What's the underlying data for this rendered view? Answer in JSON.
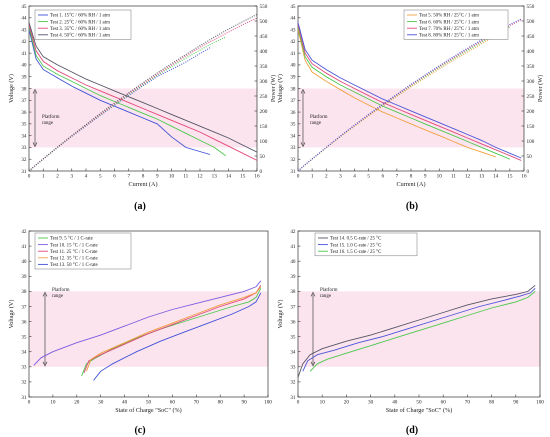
{
  "figure": {
    "captions": [
      "(a)",
      "(b)",
      "(c)",
      "(d)"
    ],
    "platform_label_lines": [
      "Platform",
      "range"
    ],
    "platform_color": "#fce4ef"
  },
  "chart_data": [
    {
      "type": "line",
      "xlabel": "Current (A)",
      "ylabel": "Voltage (V)",
      "y2label": "Power (W)",
      "xlim": [
        0,
        16
      ],
      "ylim": [
        31,
        45
      ],
      "y2lim": [
        0,
        550
      ],
      "xticks": [
        0,
        1,
        2,
        3,
        4,
        5,
        6,
        7,
        8,
        9,
        10,
        11,
        12,
        13,
        14,
        15,
        16
      ],
      "yticks": [
        31,
        32,
        33,
        34,
        35,
        36,
        37,
        38,
        39,
        40,
        41,
        42,
        43,
        44,
        45
      ],
      "y2ticks": [
        0,
        50,
        100,
        150,
        200,
        250,
        300,
        350,
        400,
        450,
        500,
        550
      ],
      "platform_range": [
        33,
        38
      ],
      "legend_position": "top-left",
      "series": [
        {
          "name": "Test 1. 15°C / 60% RH / 1 atm",
          "color": "#3f51d8",
          "x": [
            0,
            0.5,
            1,
            2,
            3,
            4,
            5,
            6,
            7,
            8,
            9,
            10,
            11,
            12.7
          ],
          "voltage": [
            43.0,
            40.5,
            39.6,
            38.9,
            38.2,
            37.6,
            37.0,
            36.5,
            36.0,
            35.5,
            35.0,
            33.9,
            33.0,
            32.4
          ],
          "power": [
            0,
            20,
            40,
            78,
            115,
            150,
            185,
            219,
            252,
            284,
            315,
            339,
            363,
            411
          ]
        },
        {
          "name": "Test 2. 25°C / 60% RH / 1 atm",
          "color": "#4cc84c",
          "x": [
            0,
            0.5,
            1,
            2,
            3,
            4,
            5,
            6,
            7,
            8,
            9,
            10,
            11,
            12,
            13,
            13.8
          ],
          "voltage": [
            43.2,
            40.8,
            39.9,
            39.2,
            38.6,
            38.0,
            37.4,
            36.9,
            36.4,
            35.9,
            35.4,
            34.8,
            34.2,
            33.6,
            33.0,
            32.3
          ],
          "power": [
            0,
            20,
            40,
            78,
            116,
            152,
            187,
            221,
            255,
            287,
            319,
            348,
            376,
            403,
            429,
            446
          ]
        },
        {
          "name": "Test 3. 35°C / 60% RH / 1 atm",
          "color": "#e2487a",
          "x": [
            0,
            0.5,
            1,
            2,
            3,
            4,
            5,
            6,
            7,
            8,
            9,
            10,
            11,
            12,
            13,
            14,
            15,
            16
          ],
          "voltage": [
            43.4,
            41.2,
            40.3,
            39.5,
            38.9,
            38.3,
            37.8,
            37.3,
            36.8,
            36.3,
            35.8,
            35.3,
            34.8,
            34.3,
            33.7,
            33.1,
            32.5,
            31.9
          ],
          "power": [
            0,
            21,
            40,
            79,
            117,
            153,
            189,
            224,
            258,
            290,
            322,
            353,
            383,
            412,
            438,
            463,
            488,
            510
          ]
        },
        {
          "name": "Test 4. 50°C / 60% RH / 1 atm",
          "color": "#555566",
          "x": [
            0,
            0.5,
            1,
            2,
            3,
            4,
            5,
            6,
            7,
            8,
            9,
            10,
            11,
            12,
            13,
            14,
            15,
            16
          ],
          "voltage": [
            43.6,
            41.6,
            40.7,
            40.0,
            39.4,
            38.8,
            38.3,
            37.8,
            37.3,
            36.8,
            36.3,
            35.8,
            35.3,
            34.8,
            34.3,
            33.8,
            33.2,
            32.6
          ],
          "power": [
            0,
            21,
            41,
            80,
            118,
            155,
            192,
            227,
            261,
            294,
            327,
            358,
            388,
            418,
            446,
            473,
            498,
            522
          ]
        }
      ]
    },
    {
      "type": "line",
      "xlabel": "Current (A)",
      "ylabel": "Voltage (V)",
      "y2label": "Power (W)",
      "xlim": [
        0,
        16
      ],
      "ylim": [
        31,
        45
      ],
      "y2lim": [
        0,
        550
      ],
      "xticks": [
        0,
        1,
        2,
        3,
        4,
        5,
        6,
        7,
        8,
        9,
        10,
        11,
        12,
        13,
        14,
        15,
        16
      ],
      "yticks": [
        31,
        32,
        33,
        34,
        35,
        36,
        37,
        38,
        39,
        40,
        41,
        42,
        43,
        44,
        45
      ],
      "y2ticks": [
        0,
        50,
        100,
        150,
        200,
        250,
        300,
        350,
        400,
        450,
        500,
        550
      ],
      "platform_range": [
        33,
        38
      ],
      "legend_position": "top-right",
      "series": [
        {
          "name": "Test 5. 50% RH / 25°C / 1 atm",
          "color": "#f0a040",
          "x": [
            0,
            0.5,
            1,
            2,
            3,
            4,
            5,
            6,
            7,
            8,
            9,
            10,
            11,
            12,
            13,
            14
          ],
          "voltage": [
            43.0,
            40.4,
            39.4,
            38.6,
            37.9,
            37.2,
            36.6,
            36.0,
            35.5,
            35.0,
            34.5,
            34.0,
            33.5,
            33.0,
            32.6,
            32.2
          ],
          "power": [
            0,
            20,
            39,
            77,
            114,
            149,
            183,
            216,
            249,
            280,
            311,
            340,
            369,
            396,
            424,
            451
          ]
        },
        {
          "name": "Test 6. 60% RH / 25°C / 1 atm",
          "color": "#4cc84c",
          "x": [
            0,
            0.5,
            1,
            2,
            3,
            4,
            5,
            6,
            7,
            8,
            9,
            10,
            11,
            12,
            13,
            14,
            15
          ],
          "voltage": [
            43.2,
            40.7,
            39.8,
            39.0,
            38.3,
            37.7,
            37.1,
            36.5,
            36.0,
            35.5,
            35.0,
            34.5,
            34.0,
            33.5,
            33.0,
            32.5,
            32.0
          ],
          "power": [
            0,
            20,
            40,
            78,
            115,
            151,
            186,
            219,
            252,
            284,
            315,
            345,
            374,
            402,
            429,
            455,
            480
          ]
        },
        {
          "name": "Test 7. 70% RH / 25°C / 1 atm",
          "color": "#e2487a",
          "x": [
            0,
            0.5,
            1,
            2,
            3,
            4,
            5,
            6,
            7,
            8,
            9,
            10,
            11,
            12,
            13,
            14,
            15,
            15.8
          ],
          "voltage": [
            43.4,
            41.0,
            40.1,
            39.3,
            38.6,
            38.0,
            37.4,
            36.8,
            36.3,
            35.8,
            35.3,
            34.8,
            34.3,
            33.8,
            33.3,
            32.8,
            32.3,
            31.9
          ],
          "power": [
            0,
            21,
            40,
            79,
            116,
            152,
            187,
            221,
            254,
            286,
            318,
            348,
            377,
            406,
            433,
            459,
            485,
            504
          ]
        },
        {
          "name": "Test 8. 80% RH / 25°C / 1 atm",
          "color": "#4a55d8",
          "x": [
            0,
            0.5,
            1,
            2,
            3,
            4,
            5,
            6,
            7,
            8,
            9,
            10,
            11,
            12,
            13,
            14,
            15,
            15.8
          ],
          "voltage": [
            43.6,
            41.3,
            40.4,
            39.6,
            38.9,
            38.3,
            37.7,
            37.1,
            36.6,
            36.1,
            35.6,
            35.1,
            34.6,
            34.1,
            33.6,
            33.0,
            32.5,
            32.1
          ],
          "power": [
            0,
            21,
            40,
            79,
            117,
            153,
            189,
            223,
            256,
            289,
            320,
            351,
            381,
            409,
            437,
            462,
            488,
            507
          ]
        }
      ]
    },
    {
      "type": "line",
      "xlabel": "State of Charge \"SoC\" (%)",
      "ylabel": "Voltage (V)",
      "xlim": [
        0,
        100
      ],
      "ylim": [
        31,
        42
      ],
      "xticks": [
        0,
        10,
        20,
        30,
        40,
        50,
        60,
        70,
        80,
        90,
        100
      ],
      "yticks": [
        31,
        32,
        33,
        34,
        35,
        36,
        37,
        38,
        39,
        40,
        41,
        42
      ],
      "platform_range": [
        33,
        38
      ],
      "legend_position": "top-left",
      "series": [
        {
          "name": "Test 9.  5 °C / 1 C-rate",
          "color": "#4cc84c",
          "x": [
            22,
            24,
            28,
            35,
            45,
            55,
            65,
            75,
            85,
            92,
            95,
            97
          ],
          "y": [
            32.4,
            33.2,
            33.6,
            34.2,
            34.9,
            35.5,
            36.0,
            36.5,
            37.0,
            37.3,
            37.6,
            38.2
          ]
        },
        {
          "name": "Test 10. 15 °C / 1 C-rate",
          "color": "#7a5be0",
          "x": [
            2,
            5,
            10,
            20,
            30,
            40,
            50,
            60,
            70,
            80,
            90,
            95,
            97
          ],
          "y": [
            33.1,
            33.6,
            34.0,
            34.6,
            35.1,
            35.7,
            36.3,
            36.8,
            37.2,
            37.6,
            38.0,
            38.3,
            38.7
          ]
        },
        {
          "name": "Test 11. 25 °C / 1 C-rate",
          "color": "#e2487a",
          "x": [
            23,
            25,
            30,
            40,
            50,
            60,
            70,
            80,
            90,
            95,
            97
          ],
          "y": [
            32.6,
            33.4,
            33.8,
            34.5,
            35.2,
            35.8,
            36.4,
            37.0,
            37.5,
            37.9,
            38.4
          ]
        },
        {
          "name": "Test 12. 35 °C / 1 C-rate",
          "color": "#f0a040",
          "x": [
            24,
            26,
            30,
            40,
            50,
            60,
            70,
            80,
            90,
            95,
            97
          ],
          "y": [
            32.7,
            33.5,
            33.9,
            34.6,
            35.3,
            35.9,
            36.5,
            37.1,
            37.6,
            37.9,
            38.3
          ]
        },
        {
          "name": "Test 13. 50 °C / 1 C-rate",
          "color": "#3f51d8",
          "x": [
            27,
            30,
            35,
            45,
            55,
            65,
            75,
            85,
            92,
            95,
            97
          ],
          "y": [
            32.1,
            32.7,
            33.2,
            34.0,
            34.7,
            35.3,
            35.9,
            36.5,
            37.0,
            37.3,
            37.9
          ]
        }
      ]
    },
    {
      "type": "line",
      "xlabel": "State of Charge \"SoC\" (%)",
      "ylabel": "Voltage (V)",
      "xlim": [
        0,
        100
      ],
      "ylim": [
        31,
        42
      ],
      "xticks": [
        0,
        10,
        20,
        30,
        40,
        50,
        60,
        70,
        80,
        90,
        100
      ],
      "yticks": [
        31,
        32,
        33,
        34,
        35,
        36,
        37,
        38,
        39,
        40,
        41,
        42
      ],
      "platform_range": [
        33,
        38
      ],
      "legend_position": "top-left",
      "series": [
        {
          "name": "Test 14. 0.5 C-rate / 25 °C",
          "color": "#555566",
          "x": [
            0,
            2,
            5,
            10,
            20,
            30,
            40,
            50,
            60,
            70,
            80,
            90,
            95,
            98
          ],
          "y": [
            32.3,
            33.2,
            33.8,
            34.2,
            34.7,
            35.1,
            35.6,
            36.1,
            36.6,
            37.1,
            37.5,
            37.8,
            38.0,
            38.4
          ]
        },
        {
          "name": "Test 15. 1.0 C-rate / 25 °C",
          "color": "#4a55d8",
          "x": [
            2,
            4,
            8,
            15,
            25,
            35,
            45,
            55,
            65,
            75,
            85,
            92,
            96,
            98
          ],
          "y": [
            32.7,
            33.4,
            33.8,
            34.1,
            34.6,
            35.0,
            35.5,
            36.0,
            36.5,
            37.0,
            37.4,
            37.7,
            37.9,
            38.2
          ]
        },
        {
          "name": "Test 16. 1.5 C-rate / 25 °C",
          "color": "#4cc84c",
          "x": [
            5,
            8,
            12,
            20,
            30,
            40,
            50,
            60,
            70,
            80,
            90,
            95,
            98
          ],
          "y": [
            32.7,
            33.2,
            33.5,
            33.9,
            34.4,
            34.9,
            35.4,
            35.9,
            36.4,
            36.9,
            37.3,
            37.6,
            38.0
          ]
        }
      ]
    }
  ]
}
